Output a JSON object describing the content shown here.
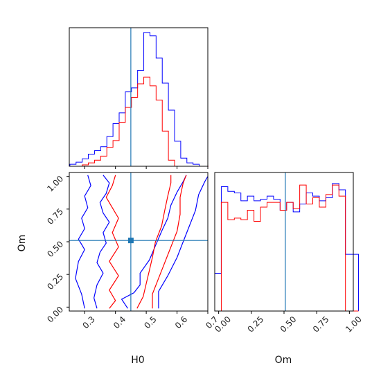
{
  "chart_data": [
    {
      "type": "step-histogram",
      "panel": "H0 marginal (top-left)",
      "xlim": [
        0.25,
        0.7
      ],
      "bins": [
        0.252,
        0.262,
        0.272,
        0.282,
        0.292,
        0.302,
        0.312,
        0.322,
        0.332,
        0.342,
        0.352,
        0.362,
        0.372,
        0.382,
        0.392,
        0.402,
        0.412,
        0.422,
        0.432,
        0.442,
        0.452,
        0.462,
        0.472,
        0.482,
        0.492,
        0.502,
        0.512,
        0.522,
        0.532,
        0.542,
        0.552,
        0.562,
        0.572,
        0.582,
        0.592,
        0.602,
        0.612,
        0.622,
        0.632,
        0.642,
        0.652,
        0.662,
        0.672,
        0.682,
        0.692
      ],
      "series": [
        {
          "color": "#0000ff",
          "counts": [
            0.3,
            0.3,
            0.6,
            0.6,
            1.1,
            1.1,
            1.8,
            1.8,
            2.3,
            2.3,
            2.9,
            2.9,
            4.4,
            4.4,
            6.3,
            6.3,
            7.9,
            7.9,
            11.0,
            11.0,
            11.6,
            11.6,
            14.2,
            14.2,
            19.8,
            19.8,
            19.3,
            19.3,
            16.0,
            16.0,
            12.3,
            12.3,
            8.3,
            8.3,
            3.7,
            3.7,
            1.2,
            1.2,
            0.5,
            0.5,
            0.3,
            0.3,
            0.0,
            0.0
          ]
        },
        {
          "color": "#ff0000",
          "counts": [
            0.0,
            0.0,
            0.0,
            0.0,
            0.2,
            0.2,
            0.5,
            0.5,
            0.9,
            0.9,
            1.5,
            1.5,
            2.8,
            2.8,
            3.8,
            3.8,
            6.5,
            6.5,
            8.7,
            8.7,
            10.2,
            10.2,
            12.2,
            12.2,
            13.2,
            13.2,
            11.9,
            11.9,
            9.8,
            9.8,
            5.2,
            5.2,
            0.9,
            0.9,
            0.0,
            0.0,
            0.0,
            0.0,
            0.0,
            0.0,
            0.0,
            0.0,
            0.0,
            0.0
          ]
        }
      ],
      "truth_line": 0.45
    },
    {
      "type": "contour",
      "panel": "H0 vs Om (bottom-left)",
      "xlabel": "H0",
      "ylabel": "Om",
      "xlim": [
        0.25,
        0.7
      ],
      "ylim": [
        -0.03,
        1.03
      ],
      "xticks": [
        "0.3",
        "0.4",
        "0.5",
        "0.6",
        "0.7"
      ],
      "yticks": [
        "0.00",
        "0.25",
        "0.50",
        "0.75",
        "1.00"
      ],
      "truth_point": [
        0.45,
        0.51
      ],
      "series": [
        {
          "color": "#0000ff",
          "contours": [
            [
              [
                0.36,
                1.01
              ],
              [
                0.38,
                0.95
              ],
              [
                0.37,
                0.87
              ],
              [
                0.35,
                0.8
              ],
              [
                0.36,
                0.72
              ],
              [
                0.38,
                0.65
              ],
              [
                0.36,
                0.57
              ],
              [
                0.37,
                0.49
              ],
              [
                0.35,
                0.42
              ],
              [
                0.34,
                0.34
              ],
              [
                0.36,
                0.26
              ],
              [
                0.34,
                0.17
              ],
              [
                0.33,
                0.07
              ],
              [
                0.34,
                -0.01
              ]
            ],
            [
              [
                0.44,
                -0.01
              ],
              [
                0.42,
                0.06
              ],
              [
                0.46,
                0.11
              ],
              [
                0.48,
                0.17
              ],
              [
                0.48,
                0.26
              ],
              [
                0.51,
                0.36
              ],
              [
                0.53,
                0.47
              ],
              [
                0.55,
                0.58
              ],
              [
                0.57,
                0.68
              ],
              [
                0.58,
                0.78
              ],
              [
                0.6,
                0.88
              ],
              [
                0.62,
                0.96
              ],
              [
                0.63,
                1.01
              ]
            ],
            [
              [
                0.31,
                1.01
              ],
              [
                0.32,
                0.93
              ],
              [
                0.3,
                0.85
              ],
              [
                0.31,
                0.76
              ],
              [
                0.29,
                0.68
              ],
              [
                0.3,
                0.6
              ],
              [
                0.28,
                0.52
              ],
              [
                0.3,
                0.44
              ],
              [
                0.28,
                0.35
              ],
              [
                0.27,
                0.22
              ],
              [
                0.29,
                0.1
              ],
              [
                0.3,
                -0.01
              ]
            ],
            [
              [
                0.54,
                -0.01
              ],
              [
                0.54,
                0.12
              ],
              [
                0.57,
                0.24
              ],
              [
                0.6,
                0.38
              ],
              [
                0.62,
                0.5
              ],
              [
                0.64,
                0.62
              ],
              [
                0.66,
                0.74
              ],
              [
                0.67,
                0.86
              ],
              [
                0.69,
                0.96
              ],
              [
                0.7,
                1.0
              ]
            ]
          ]
        },
        {
          "color": "#ff0000",
          "contours": [
            [
              [
                0.4,
                1.01
              ],
              [
                0.39,
                0.93
              ],
              [
                0.37,
                0.84
              ],
              [
                0.39,
                0.76
              ],
              [
                0.41,
                0.68
              ],
              [
                0.39,
                0.57
              ],
              [
                0.41,
                0.46
              ],
              [
                0.38,
                0.35
              ],
              [
                0.41,
                0.24
              ],
              [
                0.38,
                0.13
              ],
              [
                0.4,
                0.05
              ],
              [
                0.38,
                -0.01
              ]
            ],
            [
              [
                0.47,
                -0.01
              ],
              [
                0.49,
                0.08
              ],
              [
                0.5,
                0.18
              ],
              [
                0.51,
                0.28
              ],
              [
                0.52,
                0.38
              ],
              [
                0.53,
                0.5
              ],
              [
                0.55,
                0.62
              ],
              [
                0.56,
                0.74
              ],
              [
                0.57,
                0.85
              ],
              [
                0.58,
                0.95
              ],
              [
                0.58,
                1.01
              ]
            ],
            [
              [
                0.52,
                -0.01
              ],
              [
                0.52,
                0.1
              ],
              [
                0.54,
                0.22
              ],
              [
                0.56,
                0.34
              ],
              [
                0.58,
                0.46
              ],
              [
                0.6,
                0.58
              ],
              [
                0.61,
                0.71
              ],
              [
                0.61,
                0.84
              ],
              [
                0.62,
                0.95
              ],
              [
                0.63,
                1.01
              ]
            ]
          ]
        }
      ]
    },
    {
      "type": "step-histogram",
      "panel": "Om marginal (bottom-right)",
      "xlabel": "Om",
      "xlim": [
        -0.03,
        1.03
      ],
      "xticks": [
        "0.00",
        "0.25",
        "0.50",
        "0.75",
        "1.00"
      ],
      "bins": [
        -0.03,
        0.02,
        0.07,
        0.12,
        0.17,
        0.22,
        0.27,
        0.32,
        0.37,
        0.42,
        0.47,
        0.52,
        0.57,
        0.62,
        0.67,
        0.72,
        0.77,
        0.82,
        0.87,
        0.92,
        0.97,
        1.02
      ],
      "series": [
        {
          "color": "#0000ff",
          "counts": [
            2.4,
            7.9,
            7.6,
            7.5,
            7.0,
            7.3,
            7.0,
            7.1,
            7.3,
            7.1,
            6.4,
            6.9,
            6.3,
            6.8,
            7.5,
            7.3,
            7.0,
            7.2,
            8.1,
            7.7,
            3.6,
            3.6
          ]
        },
        {
          "color": "#ff0000",
          "counts": [
            0.0,
            6.9,
            5.8,
            5.9,
            5.8,
            6.4,
            5.7,
            6.6,
            6.9,
            6.9,
            6.4,
            6.9,
            6.5,
            8.0,
            6.8,
            7.2,
            6.6,
            7.4,
            8.0,
            7.3,
            0.0,
            0.0
          ]
        }
      ],
      "truth_line": 0.51
    }
  ]
}
